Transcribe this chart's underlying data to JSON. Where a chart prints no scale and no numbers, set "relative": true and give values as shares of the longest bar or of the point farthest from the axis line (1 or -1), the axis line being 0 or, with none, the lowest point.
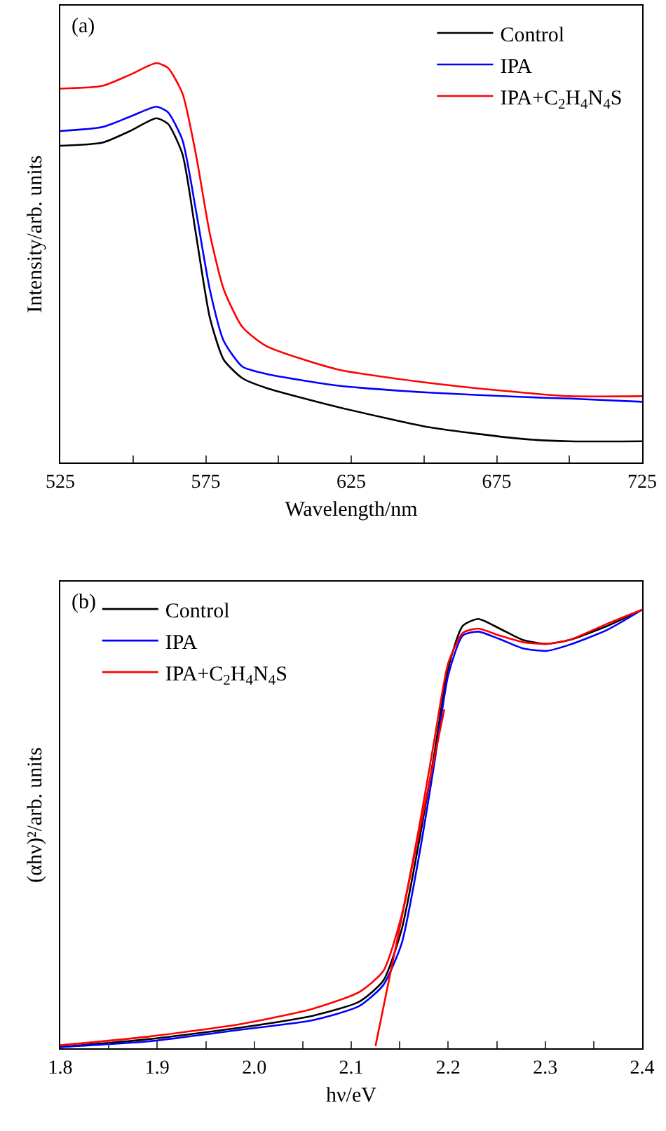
{
  "chart_data": [
    {
      "type": "line",
      "relative": true,
      "xlabel": "Wavelength/nm",
      "ylabel": "Intensity/arb. units",
      "annotations": [
        "(a)"
      ],
      "legend": "top right",
      "tick_labels": "x",
      "xlim": [
        525,
        725
      ],
      "xticks": [
        525,
        {
          "value": 550,
          "label": null
        },
        575,
        {
          "value": 600,
          "label": null
        },
        625,
        {
          "value": 650,
          "label": null
        },
        675,
        {
          "value": 700,
          "label": null
        },
        725
      ],
      "x": [
        525,
        539.5,
        549,
        558,
        562,
        567,
        571.6,
        576.4,
        581.2,
        587.6,
        595.7,
        619.8,
        651.9,
        684,
        700,
        725
      ],
      "series": [
        {
          "name": "Control",
          "color": "#000000",
          "values": [
            0.793,
            0.801,
            0.83,
            0.862,
            0.848,
            0.772,
            0.573,
            0.363,
            0.257,
            0.211,
            0.187,
            0.14,
            0.088,
            0.059,
            0.053,
            0.053
          ]
        },
        {
          "name": "IPA",
          "color": "#0000ff",
          "values": [
            0.83,
            0.84,
            0.866,
            0.891,
            0.877,
            0.807,
            0.632,
            0.433,
            0.304,
            0.24,
            0.222,
            0.193,
            0.175,
            0.164,
            0.16,
            0.152
          ]
        },
        {
          "name": "IPA+C$_{2}$H$_{4}$N$_{4}$S",
          "color": "#ff0000",
          "values": [
            0.936,
            0.943,
            0.971,
            1.0,
            0.988,
            0.924,
            0.772,
            0.573,
            0.433,
            0.339,
            0.292,
            0.234,
            0.199,
            0.175,
            0.166,
            0.166
          ]
        }
      ]
    },
    {
      "type": "line",
      "relative": true,
      "xlabel": "hν/eV",
      "ylabel": "(αhν)²/arb. units",
      "annotations": [
        "(b)"
      ],
      "legend": "top left",
      "tick_labels": "x",
      "xlim": [
        1.8,
        2.4
      ],
      "xticks": [
        {
          "value": 1.8,
          "label": "1.8"
        },
        {
          "value": 1.85,
          "label": null
        },
        {
          "value": 1.9,
          "label": "1.9"
        },
        {
          "value": 1.95,
          "label": null
        },
        {
          "value": 2.0,
          "label": "2.0"
        },
        {
          "value": 2.05,
          "label": null
        },
        {
          "value": 2.1,
          "label": "2.1"
        },
        {
          "value": 2.15,
          "label": null
        },
        {
          "value": 2.2,
          "label": "2.2"
        },
        {
          "value": 2.25,
          "label": null
        },
        {
          "value": 2.3,
          "label": "2.3"
        },
        {
          "value": 2.35,
          "label": null
        },
        {
          "value": 2.4,
          "label": "2.4"
        }
      ],
      "x": [
        1.8,
        1.892,
        1.988,
        2.06,
        2.108,
        2.133,
        2.152,
        2.171,
        2.186,
        2.2,
        2.215,
        2.231,
        2.253,
        2.277,
        2.301,
        2.325,
        2.364,
        2.4
      ],
      "series": [
        {
          "name": "Control",
          "color": "#000000",
          "values": [
            0.003,
            0.021,
            0.048,
            0.074,
            0.106,
            0.154,
            0.271,
            0.484,
            0.676,
            0.867,
            0.963,
            0.979,
            0.957,
            0.931,
            0.922,
            0.931,
            0.963,
            1.0
          ]
        },
        {
          "name": "IPA",
          "color": "#0000ff",
          "values": [
            0.003,
            0.016,
            0.043,
            0.064,
            0.096,
            0.144,
            0.239,
            0.452,
            0.654,
            0.851,
            0.941,
            0.95,
            0.933,
            0.912,
            0.906,
            0.92,
            0.954,
            1.0
          ]
        },
        {
          "name": "IPA+C$_{2}$H$_{4}$N$_{4}$S",
          "color": "#ff0000",
          "values": [
            0.007,
            0.027,
            0.056,
            0.09,
            0.128,
            0.176,
            0.303,
            0.516,
            0.707,
            0.878,
            0.947,
            0.957,
            0.941,
            0.926,
            0.922,
            0.931,
            0.968,
            1.0
          ]
        },
        {
          "type": "line",
          "color": "#ff0000",
          "x": [
            2.125,
            2.196
          ],
          "values": [
            0.005,
            0.773
          ]
        }
      ]
    }
  ]
}
